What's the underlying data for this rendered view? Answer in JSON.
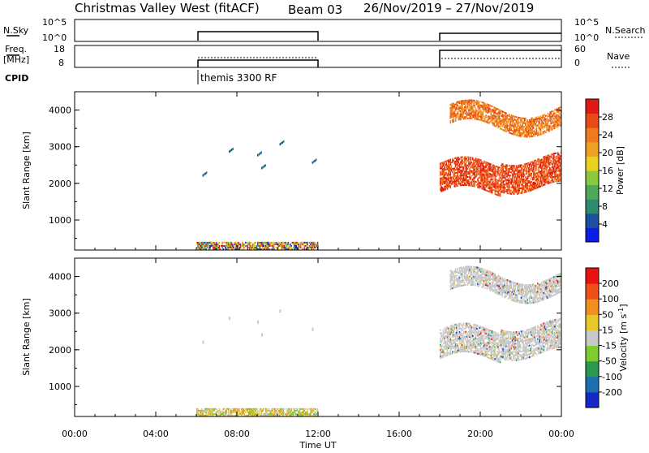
{
  "header": {
    "title": "Christmas Valley West (fitACF)",
    "beam": "Beam 03",
    "date_range": "26/Nov/2019 – 27/Nov/2019"
  },
  "strips": {
    "nsky": {
      "label": "N.Sky",
      "ticks": [
        "10^5",
        "10^0"
      ],
      "right_ticks": [
        "10^5",
        "10^0"
      ],
      "right_label": "N.Search"
    },
    "freq": {
      "label_top": "Freq.",
      "label_bottom": "[MHz]",
      "ticks": [
        "18",
        "8"
      ],
      "right_ticks": [
        "60",
        "0"
      ],
      "right_label": "Nave"
    },
    "cpid": {
      "label": "CPID",
      "program": "themis 3300 RF"
    }
  },
  "x_axis": {
    "label": "Time UT",
    "ticks": [
      "00:00",
      "04:00",
      "08:00",
      "12:00",
      "16:00",
      "20:00",
      "00:00"
    ],
    "range_hours": [
      0,
      24
    ]
  },
  "colorbars": {
    "power": {
      "label": "Power [dB]",
      "ticks": [
        "28",
        "24",
        "20",
        "16",
        "12",
        "8",
        "4"
      ],
      "range": [
        0,
        32
      ]
    },
    "velocity": {
      "label_main": "Velocity [m s",
      "label_sup": "-1",
      "label_end": "]",
      "ticks": [
        "200",
        "100",
        "50",
        "15",
        "-15",
        "-50",
        "-100",
        "-200"
      ]
    }
  },
  "colors": {
    "power_scale": [
      "#0a1ee6",
      "#1e50a0",
      "#2d8c6e",
      "#4ea85a",
      "#8cc83c",
      "#e8d21e",
      "#f0a020",
      "#f07a1e",
      "#e84a18",
      "#e21a14"
    ],
    "velocity_scale": [
      "#1428c8",
      "#1e6eb4",
      "#2a9a50",
      "#80cc30",
      "#c8c8c8",
      "#e8c828",
      "#f09020",
      "#f05018",
      "#e81414"
    ],
    "ground_scatter": "#a0a0a0"
  },
  "chart_data": [
    {
      "type": "heatmap",
      "name": "power",
      "ylabel": "Slant Range [km]",
      "y_ticks": [
        "4000",
        "3000",
        "2000",
        "1000"
      ],
      "ylim_km": [
        180,
        4500
      ],
      "xlim_hours": [
        0,
        24
      ],
      "scatter_regions": [
        {
          "t_start": 6.0,
          "t_end": 12.0,
          "range_km": [
            180,
            400
          ],
          "power_db": "4–32",
          "note_dominant": "mixed"
        },
        {
          "t_start": 18.0,
          "t_end": 24.0,
          "range_km": [
            1500,
            2900
          ],
          "power_db": "16–32"
        },
        {
          "t_start": 18.5,
          "t_end": 24.0,
          "range_km": [
            3300,
            4400
          ],
          "power_db": "16–28"
        }
      ],
      "isolated_echoes": [
        {
          "t": 6.3,
          "range_km": 2250,
          "power_db": 6
        },
        {
          "t": 7.6,
          "range_km": 2900,
          "power_db": 6
        },
        {
          "t": 9.0,
          "range_km": 2800,
          "power_db": 6
        },
        {
          "t": 9.2,
          "range_km": 2450,
          "power_db": 6
        },
        {
          "t": 10.1,
          "range_km": 3100,
          "power_db": 6
        },
        {
          "t": 11.7,
          "range_km": 2600,
          "power_db": 6
        }
      ]
    },
    {
      "type": "heatmap",
      "name": "velocity",
      "ylabel": "Slant Range [km]",
      "y_ticks": [
        "4000",
        "3000",
        "2000",
        "1000"
      ],
      "ylim_km": [
        180,
        4500
      ],
      "xlim_hours": [
        0,
        24
      ],
      "scatter_regions": [
        {
          "t_start": 6.0,
          "t_end": 12.0,
          "range_km": [
            180,
            400
          ],
          "velocity_ms": "-100–50"
        },
        {
          "t_start": 18.0,
          "t_end": 24.0,
          "range_km": [
            1500,
            2900
          ],
          "velocity_ms": "-15–15"
        },
        {
          "t_start": 18.5,
          "t_end": 24.0,
          "range_km": [
            3300,
            4400
          ],
          "velocity_ms": "-15–15"
        }
      ]
    }
  ]
}
